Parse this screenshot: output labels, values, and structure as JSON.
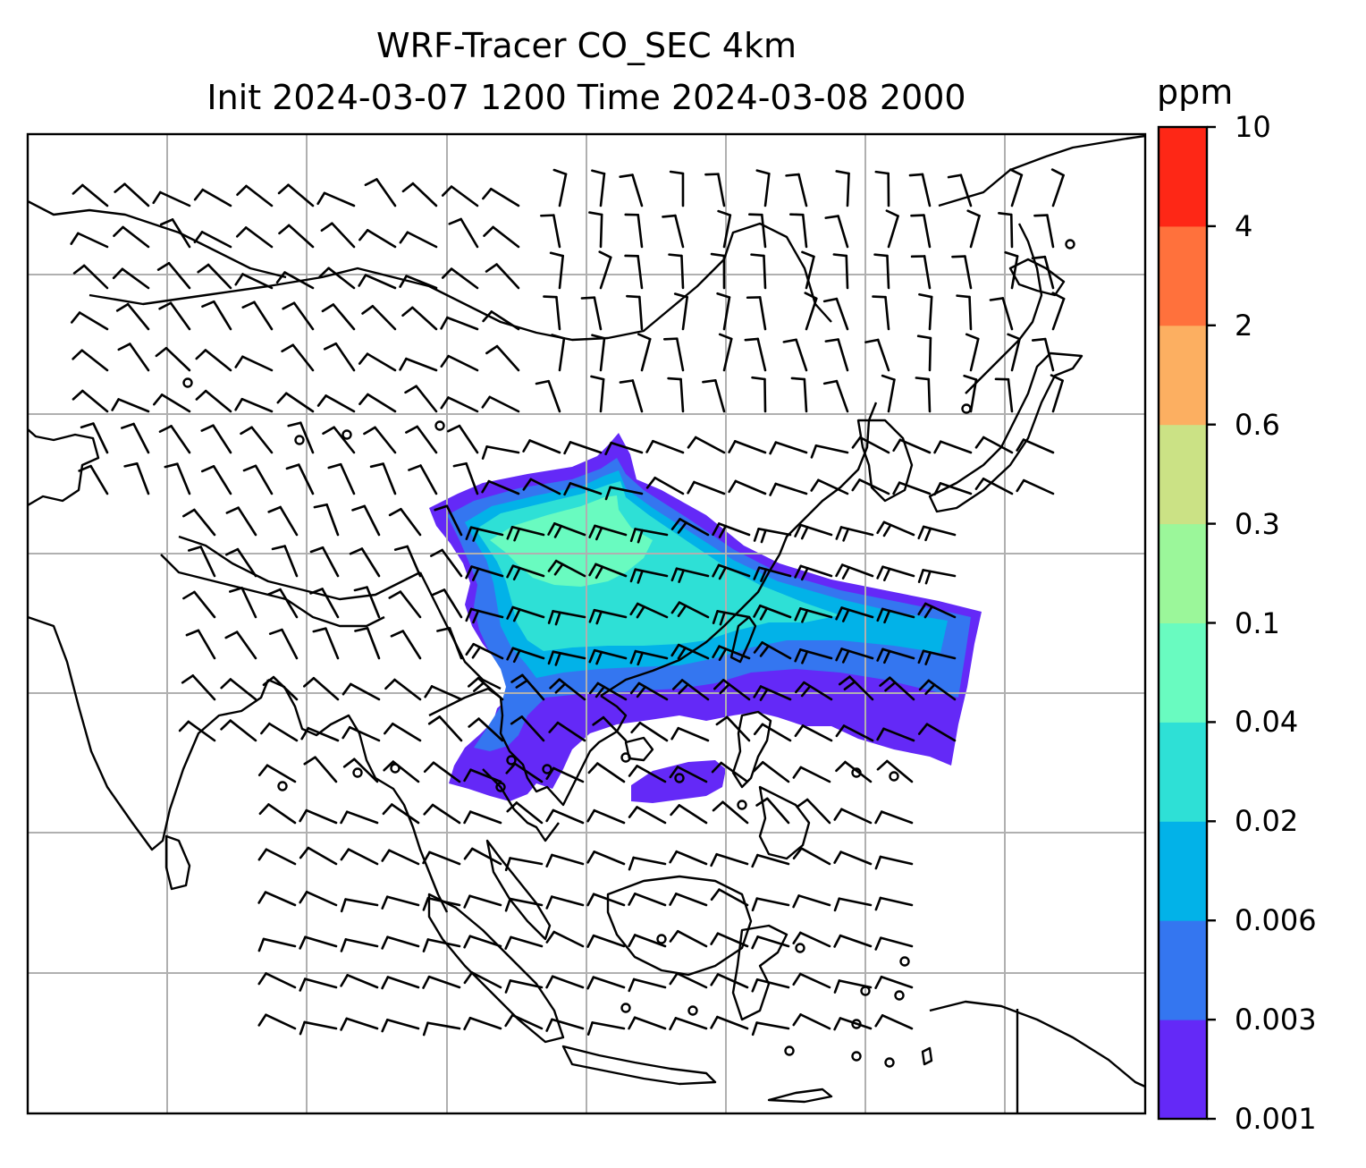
{
  "title": {
    "line1": "WRF-Tracer CO_SEC 4km",
    "line2": "Init 2024-03-07 1200 Time 2024-03-08 2000"
  },
  "colorbar": {
    "unit": "ppm",
    "levels": [
      "0.001",
      "0.003",
      "0.006",
      "0.02",
      "0.04",
      "0.1",
      "0.3",
      "0.6",
      "2",
      "4",
      "10"
    ],
    "colors": [
      "#6429f7",
      "#3476f0",
      "#02b2e8",
      "#2ee0d6",
      "#69fbc0",
      "#9bf79a",
      "#cbe285",
      "#fcaf61",
      "#ff713c",
      "#fe2716"
    ]
  },
  "map": {
    "colors": {
      "coastline": "#000000",
      "gridline": "#b0b0b0",
      "wind_barb": "#000000"
    },
    "plume_levels": [
      "0.001",
      "0.003",
      "0.006",
      "0.02",
      "0.04"
    ],
    "wind_barb_rows": 21,
    "calm_station_count": 28
  }
}
